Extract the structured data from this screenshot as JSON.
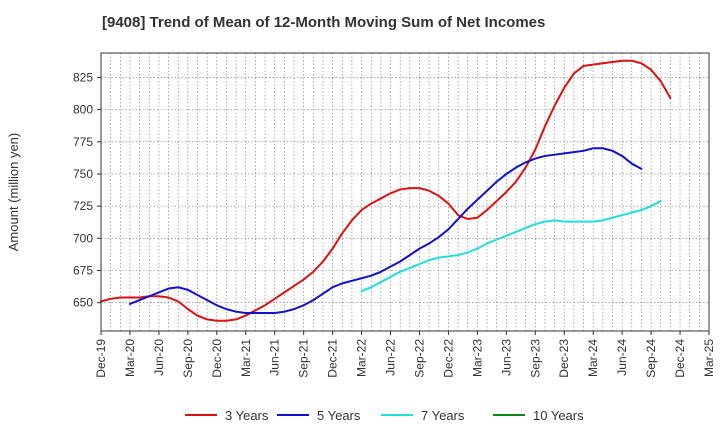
{
  "chart_data": {
    "type": "line",
    "title": "[9408]  Trend of Mean of 12-Month Moving Sum of Net Incomes",
    "xlabel": "",
    "ylabel": "Amount (million yen)",
    "ylim": [
      628,
      844
    ],
    "y_ticks": [
      650,
      675,
      700,
      725,
      750,
      775,
      800,
      825
    ],
    "x_ticks": [
      "Dec-19",
      "Mar-20",
      "Jun-20",
      "Sep-20",
      "Dec-20",
      "Mar-21",
      "Jun-21",
      "Sep-21",
      "Dec-21",
      "Mar-22",
      "Jun-22",
      "Sep-22",
      "Dec-22",
      "Mar-23",
      "Jun-23",
      "Sep-23",
      "Dec-23",
      "Mar-24",
      "Jun-24",
      "Sep-24",
      "Dec-24",
      "Mar-25"
    ],
    "grid": true,
    "legend_position": "bottom",
    "series": [
      {
        "name": "3 Years",
        "color": "#dd1111",
        "start": "Dec-19",
        "values": [
          651,
          653,
          654,
          654,
          654,
          655,
          655,
          654,
          651,
          645,
          640,
          637,
          636,
          636,
          637,
          640,
          644,
          648,
          653,
          658,
          663,
          668,
          674,
          682,
          692,
          704,
          714,
          722,
          727,
          731,
          735,
          738,
          739,
          739,
          737,
          733,
          727,
          718,
          715,
          716,
          722,
          729,
          736,
          744,
          755,
          769,
          787,
          803,
          817,
          828,
          834,
          835,
          836,
          837,
          838,
          838,
          836,
          831,
          822,
          809
        ]
      },
      {
        "name": "5 Years",
        "color": "#1111cc",
        "start": "Mar-20",
        "values": [
          649,
          652,
          655,
          658,
          661,
          662,
          660,
          656,
          652,
          648,
          645,
          643,
          642,
          642,
          642,
          642,
          643,
          645,
          648,
          652,
          657,
          662,
          665,
          667,
          669,
          671,
          674,
          678,
          682,
          687,
          692,
          696,
          701,
          707,
          715,
          723,
          730,
          737,
          744,
          750,
          755,
          759,
          762,
          764,
          765,
          766,
          767,
          768,
          770,
          770,
          768,
          764,
          758,
          754
        ]
      },
      {
        "name": "7 Years",
        "color": "#22dddd",
        "start": "Mar-22",
        "values": [
          659,
          662,
          666,
          670,
          674,
          677,
          680,
          683,
          685,
          686,
          687,
          689,
          692,
          696,
          699,
          702,
          705,
          708,
          711,
          713,
          714,
          713,
          713,
          713,
          713,
          714,
          716,
          718,
          720,
          722,
          725,
          729
        ]
      },
      {
        "name": "10 Years",
        "color": "#118811",
        "start": "Dec-19",
        "values": []
      }
    ]
  }
}
